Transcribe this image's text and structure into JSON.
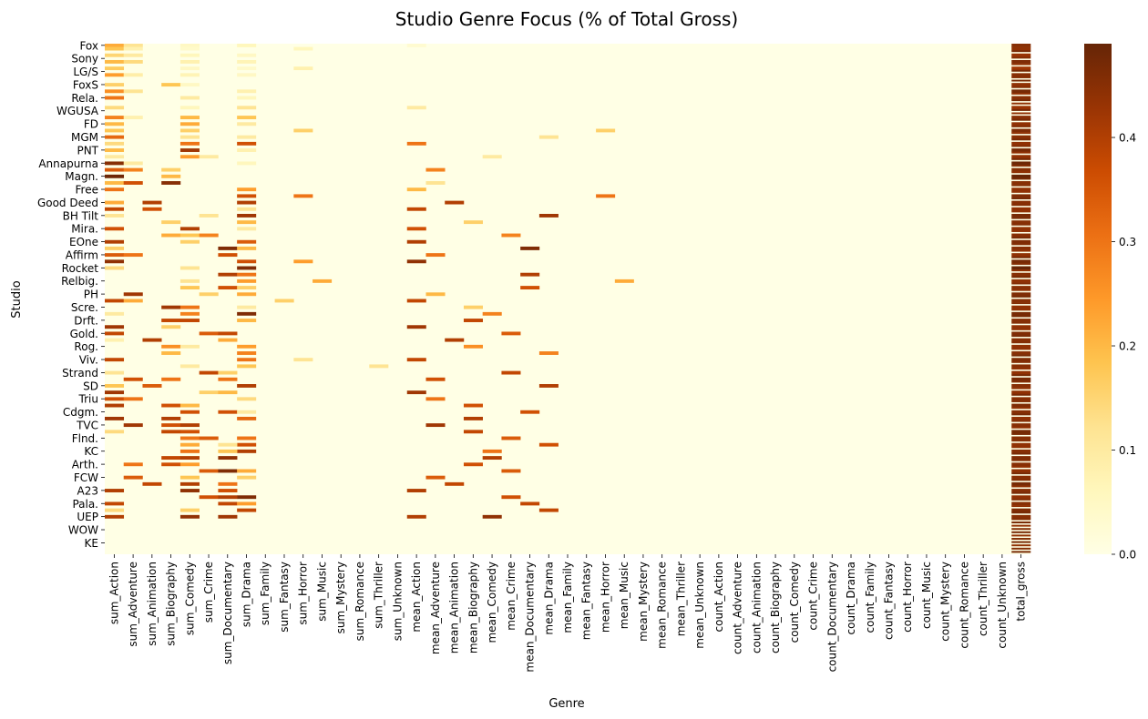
{
  "chart_data": {
    "type": "heatmap",
    "title": "Studio Genre Focus (% of Total Gross)",
    "xlabel": "Genre",
    "ylabel": "Studio",
    "x_tick_labels": [
      "sum_Action",
      "sum_Adventure",
      "sum_Animation",
      "sum_Biography",
      "sum_Comedy",
      "sum_Crime",
      "sum_Documentary",
      "sum_Drama",
      "sum_Family",
      "sum_Fantasy",
      "sum_Horror",
      "sum_Music",
      "sum_Mystery",
      "sum_Romance",
      "sum_Thriller",
      "sum_Unknown",
      "mean_Action",
      "mean_Adventure",
      "mean_Animation",
      "mean_Biography",
      "mean_Comedy",
      "mean_Crime",
      "mean_Documentary",
      "mean_Drama",
      "mean_Family",
      "mean_Fantasy",
      "mean_Horror",
      "mean_Music",
      "mean_Mystery",
      "mean_Romance",
      "mean_Thriller",
      "mean_Unknown",
      "count_Action",
      "count_Adventure",
      "count_Animation",
      "count_Biography",
      "count_Comedy",
      "count_Crime",
      "count_Documentary",
      "count_Drama",
      "count_Family",
      "count_Fantasy",
      "count_Horror",
      "count_Music",
      "count_Mystery",
      "count_Romance",
      "count_Thriller",
      "count_Unknown",
      "total_gross"
    ],
    "columns": [
      "sum_Action",
      "sum_Adventure",
      "sum_Animation",
      "sum_Biography",
      "sum_Comedy",
      "sum_Crime",
      "sum_Documentary",
      "sum_Drama",
      "sum_Family",
      "sum_Fantasy",
      "sum_Horror",
      "sum_Music",
      "sum_Mystery",
      "sum_Romance",
      "sum_Thriller",
      "sum_Unknown",
      "mean_Action",
      "mean_Adventure",
      "mean_Animation",
      "mean_Biography",
      "mean_Comedy",
      "mean_Crime",
      "mean_Documentary",
      "mean_Drama",
      "mean_Family",
      "mean_Fantasy",
      "mean_Horror",
      "mean_Music",
      "mean_Mystery",
      "mean_Romance",
      "mean_Thriller",
      "mean_Unknown",
      "count_Action",
      "count_Adventure",
      "count_Animation",
      "count_Biography",
      "count_Comedy",
      "count_Crime",
      "count_Documentary",
      "count_Drama",
      "count_Family",
      "count_Fantasy",
      "count_Horror",
      "count_Music",
      "count_Mystery",
      "count_Romance",
      "count_Thriller",
      "count_Unknown",
      "total_gross"
    ],
    "y_tick_labels": [
      "Fox",
      "Sony",
      "LG/S",
      "FoxS",
      "Rela.",
      "WGUSA",
      "FD",
      "MGM",
      "PNT",
      "Annapurna",
      "Magn.",
      "Free",
      "Good Deed",
      "BH Tilt",
      "Mira.",
      "EOne",
      "Affirm",
      "Rocket",
      "Relbig.",
      "PH",
      "Scre.",
      "Drft.",
      "Gold.",
      "Rog.",
      "Viv.",
      "Strand",
      "SD",
      "Triu",
      "Cdgm.",
      "TVC",
      "Flnd.",
      "KC",
      "Arth.",
      "FCW",
      "A23",
      "Pala.",
      "UEP",
      "WOW",
      "KE"
    ],
    "n_rows": 156,
    "row_tick_every": 4,
    "colorbar": {
      "ticks": [
        0.0,
        0.1,
        0.2,
        0.3,
        0.4
      ],
      "tick_labels": [
        "0.0",
        "0.1",
        "0.2",
        "0.3",
        "0.4"
      ],
      "vmin": 0.0,
      "vmax": 0.49
    },
    "colormap": "YlOrBr",
    "note_values": "cells",
    "cells": {
      "0": {
        "sum_Action": 0.22,
        "sum_Adventure": 0.12,
        "sum_Comedy": 0.05,
        "sum_Drama": 0.06,
        "mean_Action": 0.03,
        "total_gross": 0.45
      },
      "1": {
        "sum_Action": 0.18,
        "sum_Adventure": 0.08,
        "sum_Comedy": 0.04,
        "sum_Horror": 0.06,
        "total_gross": 0.44
      },
      "3": {
        "sum_Action": 0.15,
        "sum_Adventure": 0.1,
        "sum_Comedy": 0.06,
        "sum_Drama": 0.05,
        "total_gross": 0.43
      },
      "5": {
        "sum_Action": 0.2,
        "sum_Adventure": 0.14,
        "sum_Comedy": 0.08,
        "sum_Drama": 0.07,
        "total_gross": 0.46
      },
      "7": {
        "sum_Action": 0.17,
        "sum_Comedy": 0.05,
        "sum_Drama": 0.04,
        "sum_Horror": 0.08,
        "total_gross": 0.42
      },
      "9": {
        "sum_Action": 0.24,
        "sum_Adventure": 0.09,
        "sum_Comedy": 0.07,
        "sum_Drama": 0.05,
        "total_gross": 0.45
      },
      "12": {
        "sum_Action": 0.16,
        "sum_Biography": 0.18,
        "sum_Comedy": 0.05,
        "total_gross": 0.44
      },
      "14": {
        "sum_Action": 0.26,
        "sum_Adventure": 0.12,
        "sum_Drama": 0.08,
        "total_gross": 0.47
      },
      "16": {
        "sum_Action": 0.3,
        "sum_Comedy": 0.1,
        "sum_Drama": 0.06,
        "total_gross": 0.45
      },
      "19": {
        "sum_Action": 0.14,
        "sum_Comedy": 0.06,
        "sum_Drama": 0.12,
        "mean_Action": 0.1,
        "total_gross": 0.43
      },
      "22": {
        "sum_Action": 0.28,
        "sum_Adventure": 0.08,
        "sum_Comedy": 0.2,
        "sum_Drama": 0.18,
        "total_gross": 0.45
      },
      "24": {
        "sum_Action": 0.2,
        "sum_Comedy": 0.22,
        "sum_Drama": 0.1,
        "total_gross": 0.44
      },
      "26": {
        "sum_Action": 0.18,
        "sum_Comedy": 0.16,
        "sum_Horror": 0.16,
        "mean_Horror": 0.16,
        "total_gross": 0.46
      },
      "28": {
        "sum_Action": 0.32,
        "sum_Comedy": 0.12,
        "sum_Drama": 0.1,
        "mean_Drama": 0.12,
        "total_gross": 0.45
      },
      "30": {
        "sum_Action": 0.14,
        "sum_Comedy": 0.3,
        "sum_Drama": 0.36,
        "mean_Action": 0.3,
        "total_gross": 0.44
      },
      "32": {
        "sum_Action": 0.2,
        "sum_Comedy": 0.42,
        "sum_Drama": 0.08,
        "total_gross": 0.47
      },
      "34": {
        "sum_Action": 0.1,
        "sum_Comedy": 0.24,
        "sum_Crime": 0.1,
        "mean_Comedy": 0.1,
        "total_gross": 0.44
      },
      "36": {
        "sum_Action": 0.45,
        "sum_Adventure": 0.1,
        "sum_Drama": 0.06,
        "total_gross": 0.48
      },
      "38": {
        "sum_Action": 0.34,
        "sum_Adventure": 0.28,
        "sum_Biography": 0.16,
        "mean_Adventure": 0.28,
        "total_gross": 0.45
      },
      "40": {
        "sum_Action": 0.48,
        "sum_Biography": 0.2,
        "total_gross": 0.49
      },
      "42": {
        "sum_Action": 0.2,
        "sum_Adventure": 0.36,
        "sum_Biography": 0.45,
        "mean_Adventure": 0.12,
        "total_gross": 0.45
      },
      "44": {
        "sum_Action": 0.3,
        "sum_Drama": 0.24,
        "mean_Action": 0.2,
        "total_gross": 0.44
      },
      "46": {
        "sum_Drama": 0.36,
        "sum_Horror": 0.3,
        "mean_Horror": 0.3,
        "total_gross": 0.46
      },
      "48": {
        "sum_Action": 0.22,
        "sum_Animation": 0.4,
        "sum_Drama": 0.4,
        "mean_Animation": 0.4,
        "total_gross": 0.45
      },
      "50": {
        "sum_Action": 0.38,
        "sum_Animation": 0.36,
        "sum_Drama": 0.12,
        "mean_Action": 0.38,
        "total_gross": 0.44
      },
      "52": {
        "sum_Action": 0.12,
        "sum_Crime": 0.12,
        "sum_Drama": 0.42,
        "mean_Drama": 0.42,
        "total_gross": 0.47
      },
      "54": {
        "sum_Biography": 0.16,
        "sum_Drama": 0.2,
        "mean_Biography": 0.16,
        "total_gross": 0.45
      },
      "56": {
        "sum_Action": 0.36,
        "sum_Comedy": 0.4,
        "sum_Drama": 0.1,
        "mean_Action": 0.36,
        "total_gross": 0.44
      },
      "58": {
        "sum_Biography": 0.22,
        "sum_Comedy": 0.18,
        "sum_Crime": 0.28,
        "mean_Crime": 0.28,
        "total_gross": 0.45
      },
      "60": {
        "sum_Action": 0.4,
        "sum_Comedy": 0.16,
        "sum_Drama": 0.34,
        "mean_Action": 0.4,
        "total_gross": 0.46
      },
      "62": {
        "sum_Action": 0.16,
        "sum_Documentary": 0.46,
        "sum_Drama": 0.2,
        "mean_Documentary": 0.46,
        "total_gross": 0.45
      },
      "64": {
        "sum_Action": 0.34,
        "sum_Adventure": 0.3,
        "sum_Documentary": 0.36,
        "mean_Adventure": 0.3,
        "total_gross": 0.44
      },
      "66": {
        "sum_Action": 0.44,
        "sum_Drama": 0.36,
        "sum_Horror": 0.24,
        "mean_Action": 0.44,
        "total_gross": 0.47
      },
      "68": {
        "sum_Action": 0.14,
        "sum_Comedy": 0.12,
        "sum_Drama": 0.46,
        "total_gross": 0.49
      },
      "70": {
        "sum_Documentary": 0.4,
        "sum_Drama": 0.3,
        "mean_Documentary": 0.4,
        "total_gross": 0.45
      },
      "72": {
        "sum_Comedy": 0.12,
        "sum_Drama": 0.24,
        "sum_Music": 0.22,
        "mean_Music": 0.22,
        "total_gross": 0.44
      },
      "74": {
        "sum_Comedy": 0.18,
        "sum_Documentary": 0.36,
        "sum_Drama": 0.16,
        "mean_Documentary": 0.36,
        "total_gross": 0.45
      },
      "76": {
        "sum_Adventure": 0.42,
        "sum_Crime": 0.16,
        "sum_Drama": 0.22,
        "mean_Adventure": 0.2,
        "total_gross": 0.46
      },
      "78": {
        "sum_Action": 0.38,
        "sum_Adventure": 0.22,
        "sum_Fantasy": 0.16,
        "mean_Action": 0.38,
        "total_gross": 0.45
      },
      "80": {
        "sum_Biography": 0.42,
        "sum_Comedy": 0.3,
        "sum_Drama": 0.1,
        "mean_Biography": 0.16,
        "total_gross": 0.44
      },
      "82": {
        "sum_Action": 0.1,
        "sum_Comedy": 0.28,
        "sum_Drama": 0.46,
        "mean_Comedy": 0.28,
        "total_gross": 0.47
      },
      "84": {
        "sum_Biography": 0.38,
        "sum_Comedy": 0.38,
        "sum_Drama": 0.2,
        "mean_Biography": 0.38,
        "total_gross": 0.45
      },
      "86": {
        "sum_Action": 0.42,
        "sum_Biography": 0.16,
        "mean_Action": 0.42,
        "total_gross": 0.44
      },
      "88": {
        "sum_Action": 0.38,
        "sum_Crime": 0.34,
        "sum_Documentary": 0.38,
        "mean_Crime": 0.34,
        "total_gross": 0.46
      },
      "90": {
        "sum_Action": 0.08,
        "sum_Animation": 0.4,
        "sum_Documentary": 0.22,
        "mean_Animation": 0.4,
        "total_gross": 0.45
      },
      "92": {
        "sum_Biography": 0.26,
        "sum_Comedy": 0.1,
        "sum_Drama": 0.24,
        "mean_Biography": 0.26,
        "total_gross": 0.44
      },
      "94": {
        "sum_Biography": 0.2,
        "sum_Drama": 0.28,
        "mean_Drama": 0.28,
        "total_gross": 0.45
      },
      "96": {
        "sum_Action": 0.38,
        "sum_Drama": 0.3,
        "sum_Horror": 0.12,
        "mean_Action": 0.38,
        "total_gross": 0.46
      },
      "98": {
        "sum_Comedy": 0.1,
        "sum_Drama": 0.18,
        "sum_Thriller": 0.12,
        "total_gross": 0.45
      },
      "100": {
        "sum_Action": 0.12,
        "sum_Crime": 0.38,
        "sum_Documentary": 0.16,
        "mean_Crime": 0.38,
        "total_gross": 0.44
      },
      "102": {
        "sum_Adventure": 0.36,
        "sum_Biography": 0.3,
        "sum_Documentary": 0.3,
        "mean_Adventure": 0.36,
        "total_gross": 0.47
      },
      "104": {
        "sum_Action": 0.18,
        "sum_Animation": 0.34,
        "sum_Drama": 0.4,
        "mean_Drama": 0.4,
        "total_gross": 0.45
      },
      "106": {
        "sum_Action": 0.42,
        "sum_Crime": 0.16,
        "sum_Documentary": 0.2,
        "mean_Action": 0.42,
        "total_gross": 0.44
      },
      "108": {
        "sum_Action": 0.36,
        "sum_Adventure": 0.3,
        "sum_Drama": 0.14,
        "mean_Adventure": 0.3,
        "total_gross": 0.45
      },
      "110": {
        "sum_Action": 0.4,
        "sum_Biography": 0.36,
        "sum_Comedy": 0.2,
        "mean_Biography": 0.36,
        "total_gross": 0.46
      },
      "112": {
        "sum_Comedy": 0.36,
        "sum_Documentary": 0.36,
        "sum_Drama": 0.1,
        "mean_Documentary": 0.36,
        "total_gross": 0.45
      },
      "114": {
        "sum_Action": 0.42,
        "sum_Biography": 0.4,
        "sum_Drama": 0.32,
        "mean_Biography": 0.4,
        "total_gross": 0.44
      },
      "116": {
        "sum_Adventure": 0.42,
        "sum_Biography": 0.36,
        "sum_Comedy": 0.4,
        "mean_Adventure": 0.42,
        "total_gross": 0.45
      },
      "118": {
        "sum_Action": 0.14,
        "sum_Biography": 0.38,
        "sum_Comedy": 0.36,
        "mean_Biography": 0.38,
        "total_gross": 0.47
      },
      "120": {
        "sum_Comedy": 0.3,
        "sum_Crime": 0.34,
        "sum_Drama": 0.3,
        "mean_Crime": 0.34,
        "total_gross": 0.45
      },
      "122": {
        "sum_Comedy": 0.22,
        "sum_Drama": 0.36,
        "sum_Documentary": 0.12,
        "mean_Drama": 0.36,
        "total_gross": 0.44
      },
      "124": {
        "sum_Comedy": 0.3,
        "sum_Drama": 0.4,
        "sum_Documentary": 0.18,
        "mean_Comedy": 0.3,
        "total_gross": 0.45
      },
      "126": {
        "sum_Biography": 0.38,
        "sum_Comedy": 0.4,
        "sum_Documentary": 0.44,
        "mean_Comedy": 0.4,
        "total_gross": 0.46
      },
      "128": {
        "sum_Adventure": 0.3,
        "sum_Biography": 0.36,
        "sum_Comedy": 0.24,
        "mean_Biography": 0.36,
        "total_gross": 0.45
      },
      "130": {
        "sum_Crime": 0.34,
        "sum_Documentary": 0.46,
        "sum_Drama": 0.22,
        "mean_Crime": 0.34,
        "total_gross": 0.44
      },
      "132": {
        "sum_Adventure": 0.34,
        "sum_Comedy": 0.18,
        "sum_Drama": 0.16,
        "mean_Adventure": 0.34,
        "total_gross": 0.45
      },
      "134": {
        "sum_Animation": 0.38,
        "sum_Comedy": 0.4,
        "sum_Documentary": 0.3,
        "mean_Animation": 0.38,
        "total_gross": 0.47
      },
      "136": {
        "sum_Action": 0.4,
        "sum_Comedy": 0.44,
        "sum_Documentary": 0.36,
        "mean_Action": 0.4,
        "total_gross": 0.45
      },
      "138": {
        "sum_Crime": 0.36,
        "sum_Drama": 0.46,
        "sum_Documentary": 0.4,
        "mean_Crime": 0.36,
        "total_gross": 0.44
      },
      "140": {
        "sum_Action": 0.38,
        "sum_Documentary": 0.38,
        "sum_Drama": 0.24,
        "mean_Documentary": 0.38,
        "total_gross": 0.45
      },
      "142": {
        "sum_Action": 0.14,
        "sum_Comedy": 0.16,
        "sum_Drama": 0.38,
        "mean_Drama": 0.38,
        "total_gross": 0.46
      },
      "144": {
        "sum_Action": 0.4,
        "sum_Comedy": 0.44,
        "sum_Documentary": 0.42,
        "mean_Action": 0.4,
        "mean_Comedy": 0.44,
        "total_gross": 0.45
      }
    }
  },
  "colors": {
    "cmap_stops": [
      "#ffffe5",
      "#fff7bc",
      "#fee391",
      "#fec44f",
      "#fe9929",
      "#ec7014",
      "#cc4c02",
      "#993404",
      "#662506"
    ]
  }
}
